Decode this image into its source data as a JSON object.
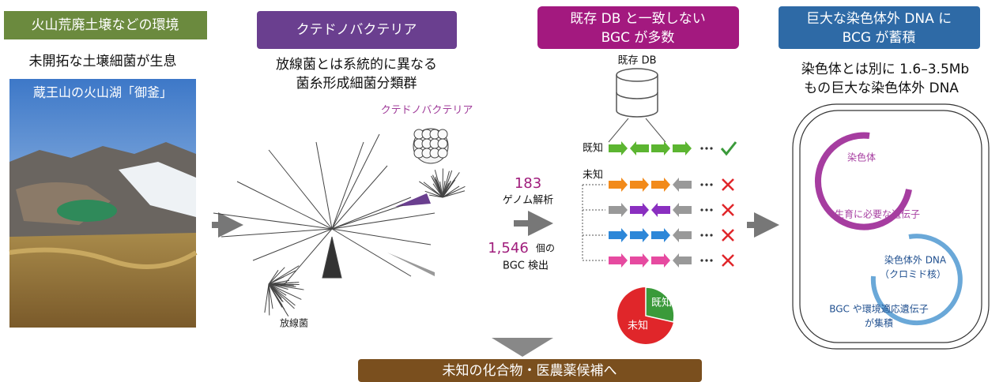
{
  "env": {
    "header": "火山荒廃土壌などの環境",
    "subtitle": "未開拓な土壌細菌が生息",
    "photo_caption": "蔵王山の火山湖「御釜」"
  },
  "ktedono": {
    "header": "クテドノバクテリア",
    "subtitle": [
      "放線菌とは系統的に異なる",
      "菌糸形成細菌分類群"
    ],
    "clade_label": "クテドノバクテリア",
    "actino_label": "放線菌"
  },
  "analysis": {
    "genomes": "183",
    "genomes_label": "ゲノム解析",
    "bgc_count": "1,546",
    "bgc_unit": "個の",
    "bgc_label": "BGC 検出"
  },
  "bgc": {
    "header": [
      "既存 DB と一致しない",
      "BGC が多数"
    ],
    "db_label": "既存 DB",
    "known_label": "既知",
    "unknown_label": "未知",
    "pie_known": "既知",
    "pie_unknown": "未知"
  },
  "megaplasmid": {
    "header": [
      "巨大な染色体外 DNA に",
      "BCG が蓄積"
    ],
    "subtitle": [
      "染色体とは別に 1.6–3.5Mb",
      "もの巨大な染色体外 DNA"
    ],
    "chromosome": "染色体",
    "essential_genes": "生育に必要な遺伝子",
    "extra_dna": "染色体外 DNA",
    "chromid": "（クロミド核）",
    "bgc_genes": [
      "BGC や環境適応遺伝子",
      "が集積"
    ]
  },
  "footer": "未知の化合物・医農薬候補へ"
}
